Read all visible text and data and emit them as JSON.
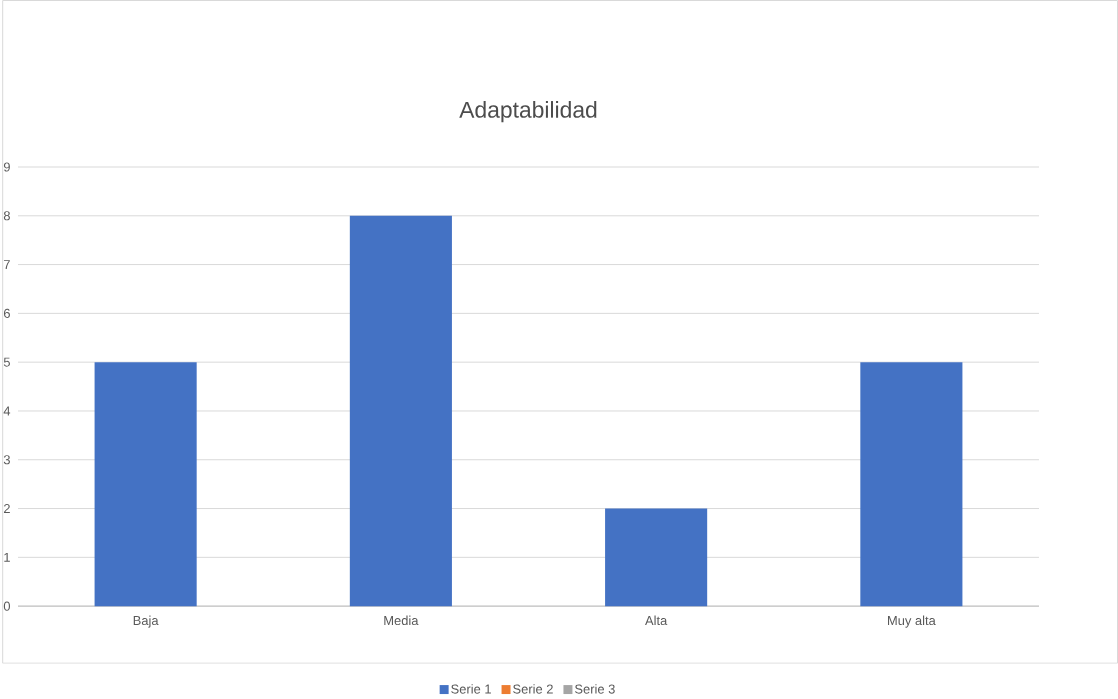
{
  "chart_data": {
    "type": "bar",
    "title": "Adaptabilidad",
    "categories": [
      "Baja",
      "Media",
      "Alta",
      "Muy alta"
    ],
    "series": [
      {
        "name": "Serie 1",
        "color": "#4472c4",
        "values": [
          5,
          8,
          2,
          5
        ]
      },
      {
        "name": "Serie 2",
        "color": "#ed7d31",
        "values": [
          null,
          null,
          null,
          null
        ]
      },
      {
        "name": "Serie 3",
        "color": "#a5a5a5",
        "values": [
          null,
          null,
          null,
          null
        ]
      }
    ],
    "ylim": [
      0,
      9
    ],
    "yticks": [
      0,
      1,
      2,
      3,
      4,
      5,
      6,
      7,
      8,
      9
    ],
    "grid": "y",
    "legend": "bottom"
  }
}
